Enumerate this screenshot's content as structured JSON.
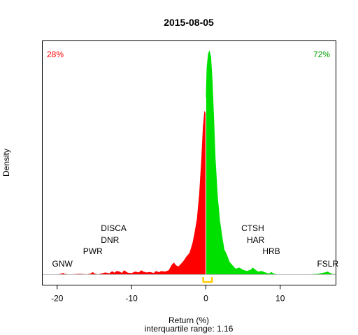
{
  "chart_data": {
    "type": "area",
    "title": "2015-08-05",
    "xlabel": "Return (%)",
    "xlabel_sub": "interquartile range: 1.16",
    "ylabel": "Density",
    "xlim": [
      -22,
      17.5
    ],
    "ylim": [
      0,
      1
    ],
    "xticks": [
      -20,
      -10,
      0,
      10
    ],
    "xtick_labels": [
      "-20",
      "-10",
      "0",
      "10"
    ],
    "grid": false,
    "split_at": 0,
    "negative_share": "28%",
    "positive_share": "72%",
    "colors": {
      "negative": "#ff0000",
      "positive": "#00e000",
      "iqr_marker": "#ffcc00",
      "baseline": "#bebebe"
    },
    "iqr": [
      -0.35,
      0.81
    ],
    "density": {
      "x": [
        -20.0,
        -19.5,
        -19.2,
        -19.0,
        -18.5,
        -18.0,
        -17.0,
        -16.0,
        -15.5,
        -15.2,
        -15.0,
        -14.5,
        -14.0,
        -13.5,
        -13.0,
        -12.6,
        -12.3,
        -12.0,
        -11.6,
        -11.3,
        -11.0,
        -10.5,
        -10.0,
        -9.5,
        -9.0,
        -8.7,
        -8.4,
        -8.0,
        -7.5,
        -7.0,
        -6.7,
        -6.3,
        -6.0,
        -5.5,
        -5.0,
        -4.6,
        -4.3,
        -4.0,
        -3.7,
        -3.4,
        -3.0,
        -2.6,
        -2.2,
        -1.8,
        -1.5,
        -1.2,
        -0.9,
        -0.6,
        -0.4,
        -0.2,
        -0.05,
        0.0,
        0.1,
        0.3,
        0.5,
        0.7,
        0.9,
        1.1,
        1.3,
        1.6,
        1.9,
        2.2,
        2.5,
        2.8,
        3.2,
        3.6,
        4.0,
        4.5,
        5.0,
        5.5,
        6.0,
        6.3,
        6.6,
        7.0,
        7.5,
        8.0,
        8.5,
        8.8,
        9.1,
        9.5,
        10.0,
        11.0,
        12.0,
        13.0,
        14.0,
        15.0,
        16.0,
        16.4,
        16.7,
        17.0,
        17.5
      ],
      "y": [
        0.0,
        0.002,
        0.006,
        0.002,
        0.0,
        0.0,
        0.002,
        0.0,
        0.003,
        0.01,
        0.004,
        0.0,
        0.004,
        0.008,
        0.004,
        0.014,
        0.007,
        0.015,
        0.012,
        0.006,
        0.018,
        0.007,
        0.005,
        0.012,
        0.008,
        0.018,
        0.012,
        0.008,
        0.01,
        0.006,
        0.015,
        0.009,
        0.015,
        0.012,
        0.018,
        0.042,
        0.052,
        0.04,
        0.035,
        0.045,
        0.06,
        0.08,
        0.095,
        0.14,
        0.19,
        0.25,
        0.36,
        0.52,
        0.66,
        0.73,
        0.72,
        0.79,
        0.92,
        0.985,
        1.0,
        0.97,
        0.86,
        0.7,
        0.52,
        0.35,
        0.24,
        0.17,
        0.11,
        0.09,
        0.055,
        0.04,
        0.025,
        0.03,
        0.02,
        0.015,
        0.02,
        0.03,
        0.022,
        0.012,
        0.015,
        0.008,
        0.003,
        0.01,
        0.004,
        0.0,
        0.0,
        0.0,
        0.0,
        0.0,
        0.0,
        0.002,
        0.008,
        0.012,
        0.006,
        0.002,
        0.0
      ]
    },
    "annotations": [
      {
        "text": "GNW",
        "x": -19.3,
        "row": 0
      },
      {
        "text": "PWR",
        "x": -15.2,
        "row": 1
      },
      {
        "text": "DNR",
        "x": -12.9,
        "row": 2
      },
      {
        "text": "DISCA",
        "x": -12.4,
        "row": 3
      },
      {
        "text": "CTSH",
        "x": 6.3,
        "row": 3
      },
      {
        "text": "HAR",
        "x": 6.7,
        "row": 2
      },
      {
        "text": "HRB",
        "x": 8.8,
        "row": 1
      },
      {
        "text": "FSLR",
        "x": 16.4,
        "row": 0
      }
    ]
  }
}
